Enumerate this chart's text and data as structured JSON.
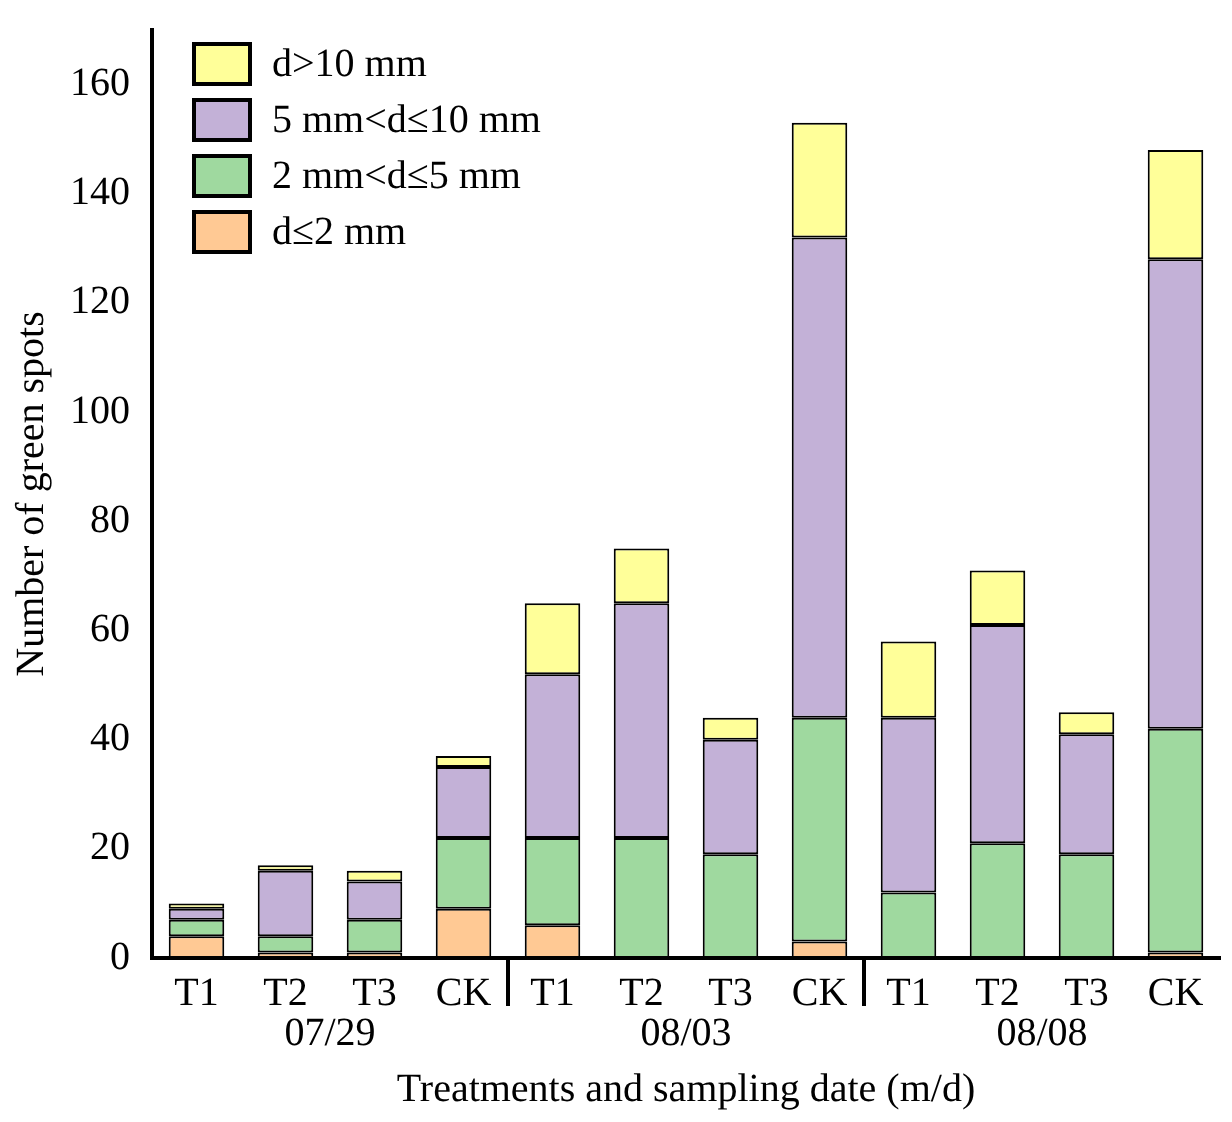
{
  "chart_data": {
    "type": "bar",
    "stacked": true,
    "xlabel": "Treatments and sampling date (m/d)",
    "ylabel": "Number of green spots",
    "categories": [
      "T1",
      "T2",
      "T3",
      "CK",
      "T1",
      "T2",
      "T3",
      "CK",
      "T1",
      "T2",
      "T3",
      "CK"
    ],
    "series": [
      {
        "name": "d≤2 mm",
        "color": "#ffc994",
        "values": [
          4,
          1,
          1,
          9,
          6,
          0,
          0,
          3,
          0,
          0,
          0,
          1
        ]
      },
      {
        "name": "2 mm<d≤5 mm",
        "color": "#9fd99f",
        "values": [
          3,
          3,
          6,
          13,
          16,
          22,
          19,
          41,
          12,
          21,
          19,
          41
        ]
      },
      {
        "name": "5 mm<d≤10 mm",
        "color": "#c3b1d7",
        "values": [
          2,
          12,
          7,
          13,
          30,
          43,
          21,
          88,
          32,
          40,
          22,
          86
        ]
      },
      {
        "name": "d>10 mm",
        "color": "#ffff99",
        "values": [
          1,
          1,
          2,
          2,
          13,
          10,
          4,
          21,
          14,
          10,
          4,
          20
        ]
      }
    ],
    "annotations": [
      "07/29",
      "08/03",
      "08/08"
    ],
    "ylim": [
      0,
      170
    ],
    "yticks": [
      0,
      20,
      40,
      60,
      80,
      100,
      120,
      140,
      160
    ],
    "grid": false,
    "legend": "top left"
  }
}
